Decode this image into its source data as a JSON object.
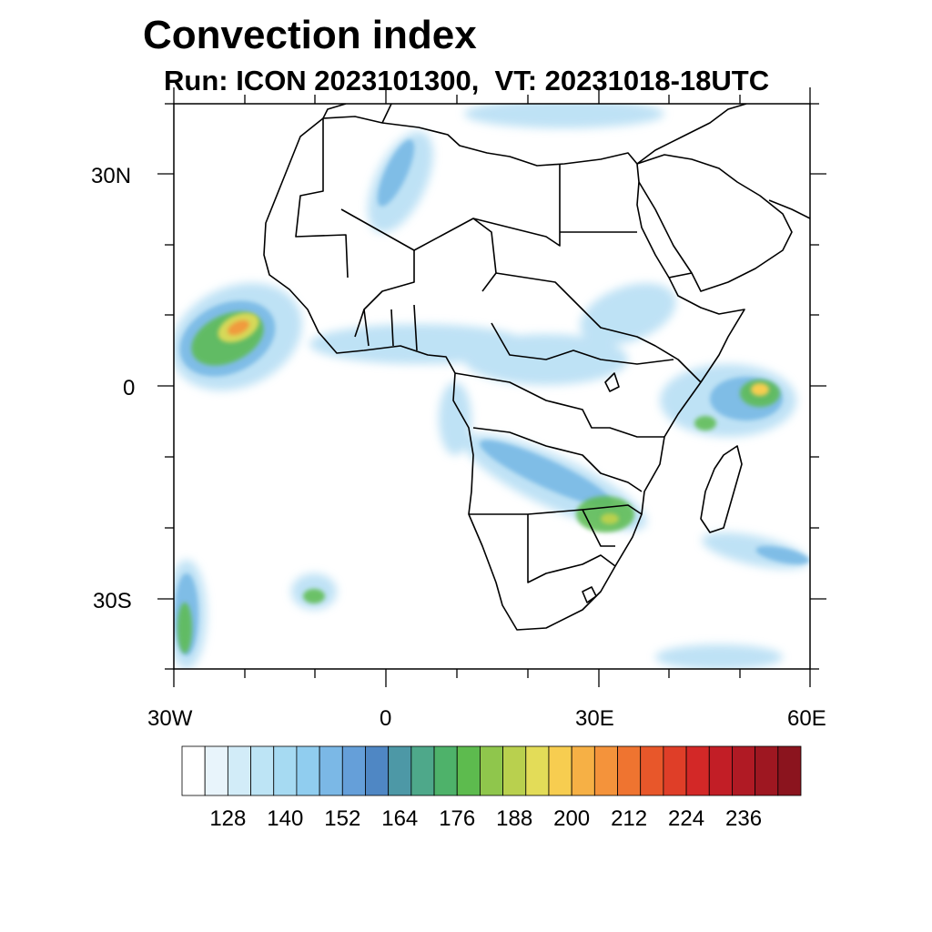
{
  "header": {
    "title": "Convection index",
    "subtitle": "Run: ICON 2023101300,  VT: 20231018-18UTC"
  },
  "axes": {
    "lat_labels": [
      "30N",
      "0",
      "30S"
    ],
    "lon_labels": [
      "30W",
      "0",
      "30E",
      "60E"
    ]
  },
  "colorbar": {
    "labels": [
      "128",
      "140",
      "152",
      "164",
      "176",
      "188",
      "200",
      "212",
      "224",
      "236"
    ],
    "colors": [
      "#ffffff",
      "#e8f4fb",
      "#d2ecf8",
      "#bde4f5",
      "#a6daf2",
      "#90cdef",
      "#7bb8e6",
      "#659fd9",
      "#4f87c4",
      "#4d98a6",
      "#4ea88a",
      "#4eb26a",
      "#5dbb4e",
      "#8fc64c",
      "#b9d04e",
      "#e3dc58",
      "#f7cd50",
      "#f6b045",
      "#f4933b",
      "#ef7430",
      "#e8572a",
      "#df3e28",
      "#d32827",
      "#c21e26",
      "#b01a24",
      "#9e1721",
      "#8b141e"
    ]
  },
  "legend_colors": {
    "coast": "#000000",
    "background": "#ffffff"
  }
}
